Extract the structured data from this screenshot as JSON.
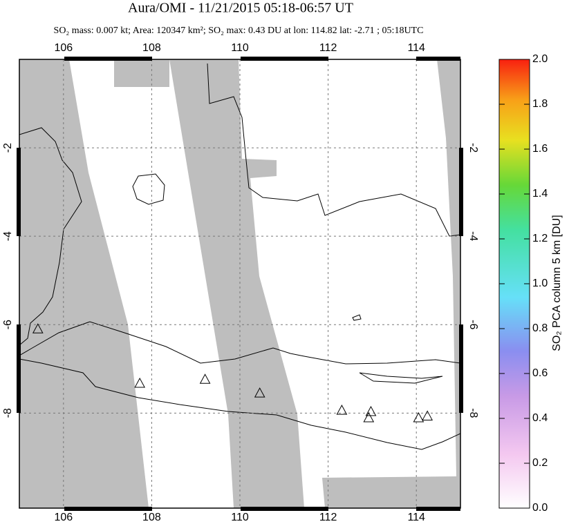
{
  "chart_data": {
    "type": "map",
    "title": "Aura/OMI - 11/21/2015 05:18-06:57 UT",
    "subtitle": "SO₂ mass: 0.007 kt; Area: 120347 km²; SO₂ max: 0.43 DU at lon: 114.82 lat: -2.71 ; 05:18UTC",
    "xlim": [
      105,
      115
    ],
    "ylim": [
      -10.15,
      0
    ],
    "xticks": [
      106,
      108,
      110,
      112,
      114
    ],
    "yticks": [
      -2,
      -4,
      -6,
      -8
    ],
    "grid": true,
    "volcanoes": {
      "lon": [
        105.42,
        107.73,
        109.21,
        110.45,
        112.31,
        112.97,
        112.92,
        114.05,
        114.25
      ],
      "lat": [
        -6.11,
        -7.34,
        -7.25,
        -7.56,
        -7.95,
        -7.98,
        -8.12,
        -8.12,
        -8.08
      ]
    },
    "colorbar": {
      "label": "SO₂ PCA column 5 km [DU]",
      "lim": [
        0,
        2
      ],
      "ticks": [
        {
          "value": 0,
          "label": "0.0"
        },
        0.2,
        0.4,
        0.6,
        0.8,
        {
          "value": 1,
          "label": "1.0"
        },
        1.2,
        1.4,
        1.6,
        1.8,
        {
          "value": 2,
          "label": "2.0"
        }
      ]
    }
  }
}
